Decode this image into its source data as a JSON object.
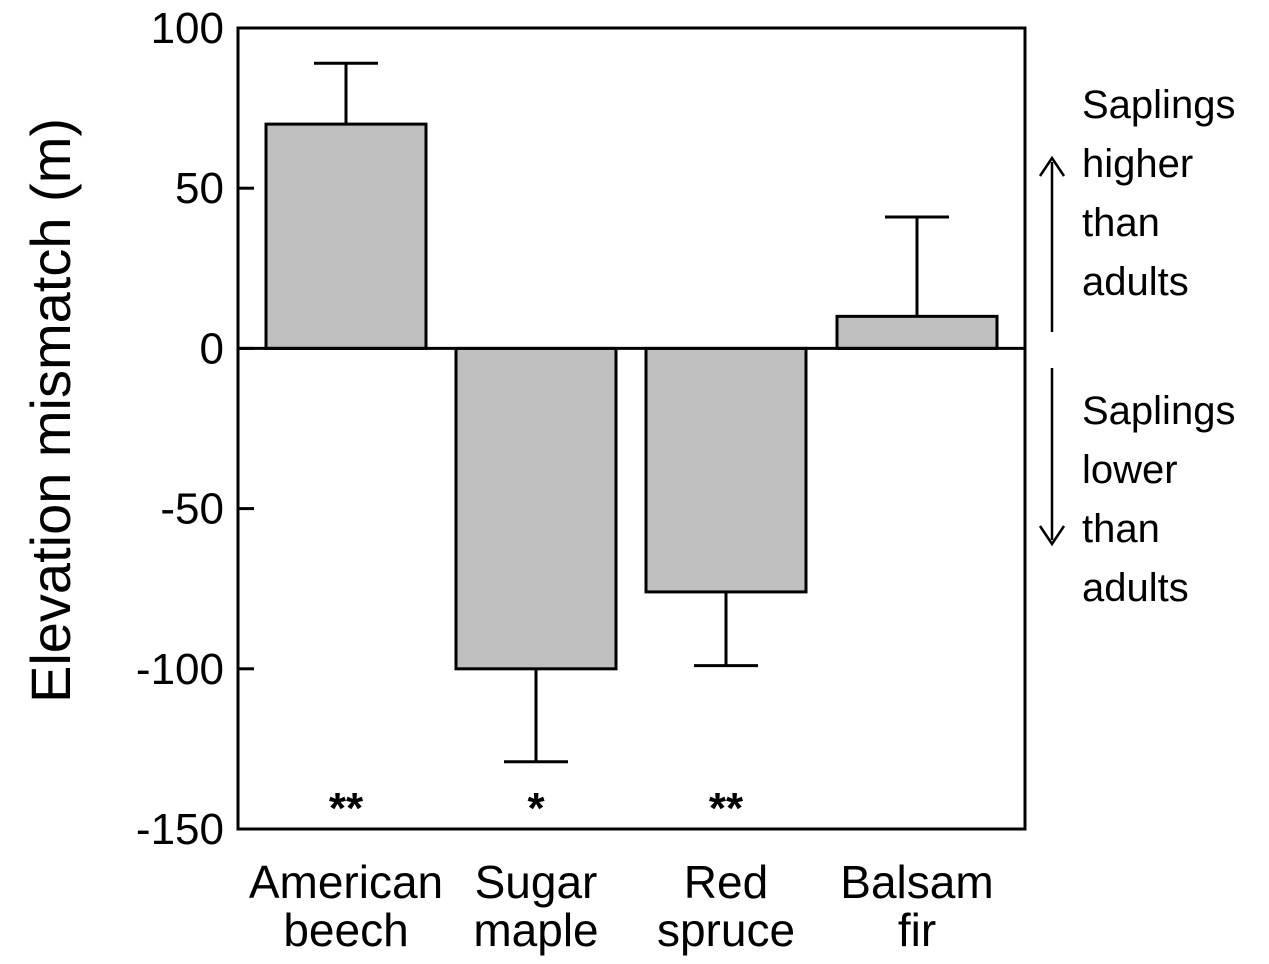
{
  "chart_data": {
    "type": "bar",
    "title": "",
    "xlabel": "",
    "ylabel": "Elevation mismatch (m)",
    "ylim": [
      -150,
      100
    ],
    "yticks": [
      100,
      50,
      0,
      -50,
      -100,
      -150
    ],
    "ytick_labels": [
      "100",
      "50",
      "0",
      "-50",
      "-100",
      "-150"
    ],
    "categories": [
      [
        "American",
        "beech"
      ],
      [
        "Sugar",
        "maple"
      ],
      [
        "Red",
        "spruce"
      ],
      [
        "Balsam",
        "fir"
      ]
    ],
    "values": [
      70,
      -100,
      -76,
      10
    ],
    "error_upper": [
      89,
      null,
      null,
      41
    ],
    "error_lower": [
      null,
      -129,
      -99,
      null
    ],
    "significance": [
      "**",
      "*",
      "**",
      ""
    ],
    "bar_color": "#c0c0c0",
    "grid": false,
    "annotations": {
      "above_zero": [
        "Saplings",
        "higher",
        "than",
        "adults"
      ],
      "below_zero": [
        "Saplings",
        "lower",
        "than",
        "adults"
      ]
    }
  }
}
